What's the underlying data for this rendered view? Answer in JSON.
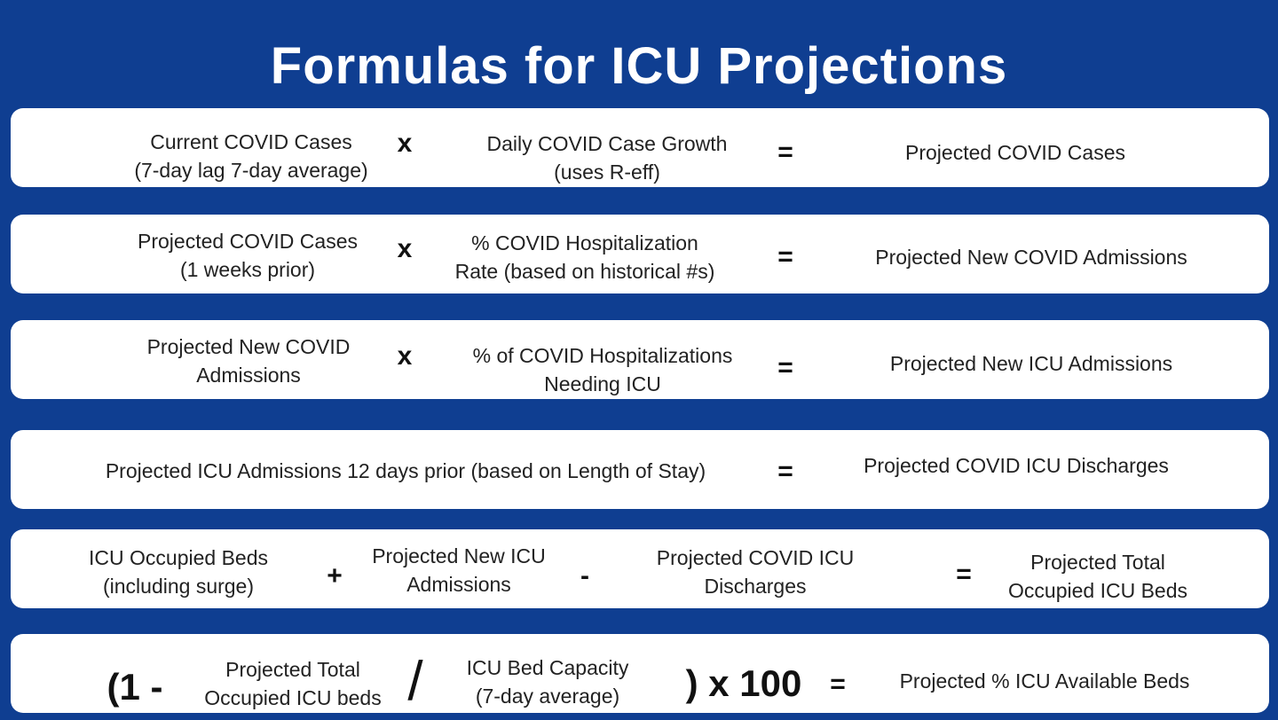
{
  "title": "Formulas for ICU Projections",
  "rows": [
    {
      "a_line1": "Current COVID Cases",
      "a_line2": "(7-day lag 7-day average)",
      "op1": "x",
      "b_line1": "Daily COVID Case Growth",
      "b_line2": "(uses R-eff)",
      "eq": "=",
      "result": "Projected COVID Cases"
    },
    {
      "a_line1": "Projected COVID Cases",
      "a_line2": "(1 weeks prior)",
      "op1": "x",
      "b_line1": "% COVID Hospitalization",
      "b_line2": "Rate (based on historical #s)",
      "eq": "=",
      "result": "Projected New COVID Admissions"
    },
    {
      "a_line1": "Projected New COVID",
      "a_line2": "Admissions",
      "op1": "x",
      "b_line1": "% of COVID Hospitalizations",
      "b_line2": "Needing ICU",
      "eq": "=",
      "result": "Projected New ICU Admissions"
    },
    {
      "a_line1": "Projected ICU Admissions 12 days prior (based on Length of Stay)",
      "eq": "=",
      "result": "Projected COVID ICU Discharges"
    },
    {
      "a_line1": "ICU Occupied Beds",
      "a_line2": "(including surge)",
      "op1": "+",
      "b_line1": "Projected New ICU",
      "b_line2": "Admissions",
      "op2": "-",
      "c_line1": "Projected COVID ICU",
      "c_line2": "Discharges",
      "eq": "=",
      "result_line1": "Projected Total",
      "result_line2": "Occupied ICU Beds"
    },
    {
      "open": "(1 -",
      "a_line1": "Projected Total",
      "a_line2": "Occupied ICU beds",
      "slash": "/",
      "b_line1": "ICU Bed Capacity",
      "b_line2": "(7-day average)",
      "close": ") x 100",
      "eq": "=",
      "result": "Projected % ICU Available Beds"
    }
  ]
}
